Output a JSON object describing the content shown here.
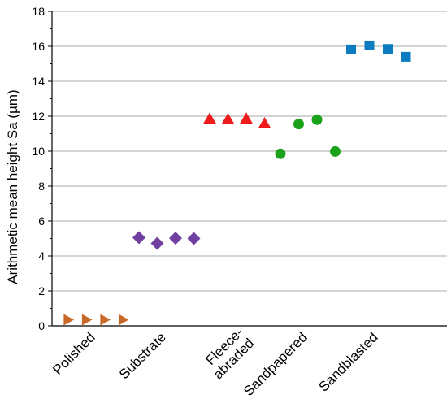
{
  "chart_data": {
    "type": "scatter",
    "title": "",
    "xlabel": "",
    "ylabel": "Arithmetic mean height Sa (µm)",
    "ylim": [
      0,
      18
    ],
    "yticks": [
      0,
      2,
      4,
      6,
      8,
      10,
      12,
      14,
      16,
      18
    ],
    "grid": "horizontal",
    "categories": [
      {
        "lines": [
          "Polished"
        ]
      },
      {
        "lines": [
          "Substrate"
        ]
      },
      {
        "lines": [
          "Fleece-",
          "abraded"
        ]
      },
      {
        "lines": [
          "Sandpapered"
        ]
      },
      {
        "lines": [
          "Sandblasted"
        ]
      }
    ],
    "series": [
      {
        "marker": "triangle-right",
        "color": "#C8692A",
        "values": [
          0.35,
          0.35,
          0.35,
          0.35
        ]
      },
      {
        "marker": "diamond",
        "color": "#7040A0",
        "values": [
          5.05,
          4.72,
          5.02,
          5.0
        ]
      },
      {
        "marker": "triangle-up",
        "color": "#EE1C1C",
        "values": [
          11.85,
          11.82,
          11.85,
          11.58
        ]
      },
      {
        "marker": "circle",
        "color": "#1AA21A",
        "values": [
          9.85,
          11.55,
          11.8,
          9.98
        ]
      },
      {
        "marker": "square",
        "color": "#0B7CC1",
        "values": [
          15.82,
          16.05,
          15.85,
          15.4
        ]
      }
    ]
  }
}
